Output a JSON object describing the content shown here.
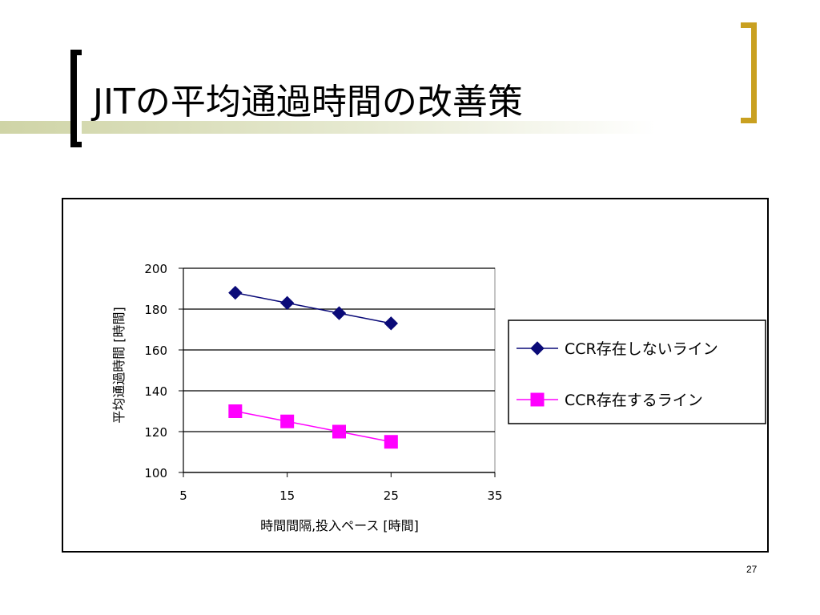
{
  "slide": {
    "title": "JITの平均通過時間の改善策",
    "page_number": "27"
  },
  "chart_data": {
    "type": "line",
    "title": "",
    "xlabel": "時間間隔,投入ペース [時間]",
    "ylabel": "平均通過時間 [時間]",
    "xlim": [
      5,
      35
    ],
    "ylim": [
      100,
      200
    ],
    "x_ticks": [
      "5",
      "15",
      "25",
      "35"
    ],
    "y_ticks": [
      "100",
      "120",
      "140",
      "160",
      "180",
      "200"
    ],
    "grid": "horizontal",
    "legend_position": "right",
    "series": [
      {
        "name": "CCR存在しないライン",
        "marker": "diamond",
        "color": "#0a0a78",
        "x": [
          10,
          15,
          20,
          25
        ],
        "y": [
          188,
          183,
          178,
          173
        ]
      },
      {
        "name": "CCR存在するライン",
        "marker": "square",
        "color": "#ff00ff",
        "x": [
          10,
          15,
          20,
          25
        ],
        "y": [
          130,
          125,
          120,
          115
        ]
      }
    ]
  }
}
